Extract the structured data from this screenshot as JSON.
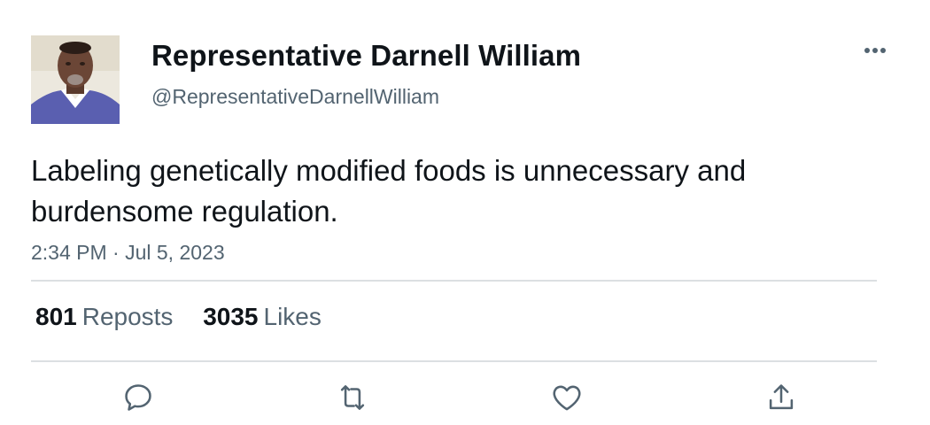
{
  "author": {
    "display_name": "Representative Darnell William",
    "handle": "@RepresentativeDarnellWilliam",
    "avatar_icon": "user-avatar-photo"
  },
  "tweet": {
    "text": "Labeling genetically modified foods is unnecessary and burdensome regulation.",
    "timestamp": "2:34 PM · Jul 5, 2023"
  },
  "stats": {
    "reposts_count": "801",
    "reposts_label": "Reposts",
    "likes_count": "3035",
    "likes_label": "Likes"
  },
  "actions": {
    "reply_icon": "reply-icon",
    "repost_icon": "repost-icon",
    "like_icon": "heart-icon",
    "share_icon": "share-icon"
  },
  "colors": {
    "primary_text": "#0f1419",
    "secondary_text": "#536471",
    "divider": "#dcdfe2",
    "icon": "#536471"
  }
}
